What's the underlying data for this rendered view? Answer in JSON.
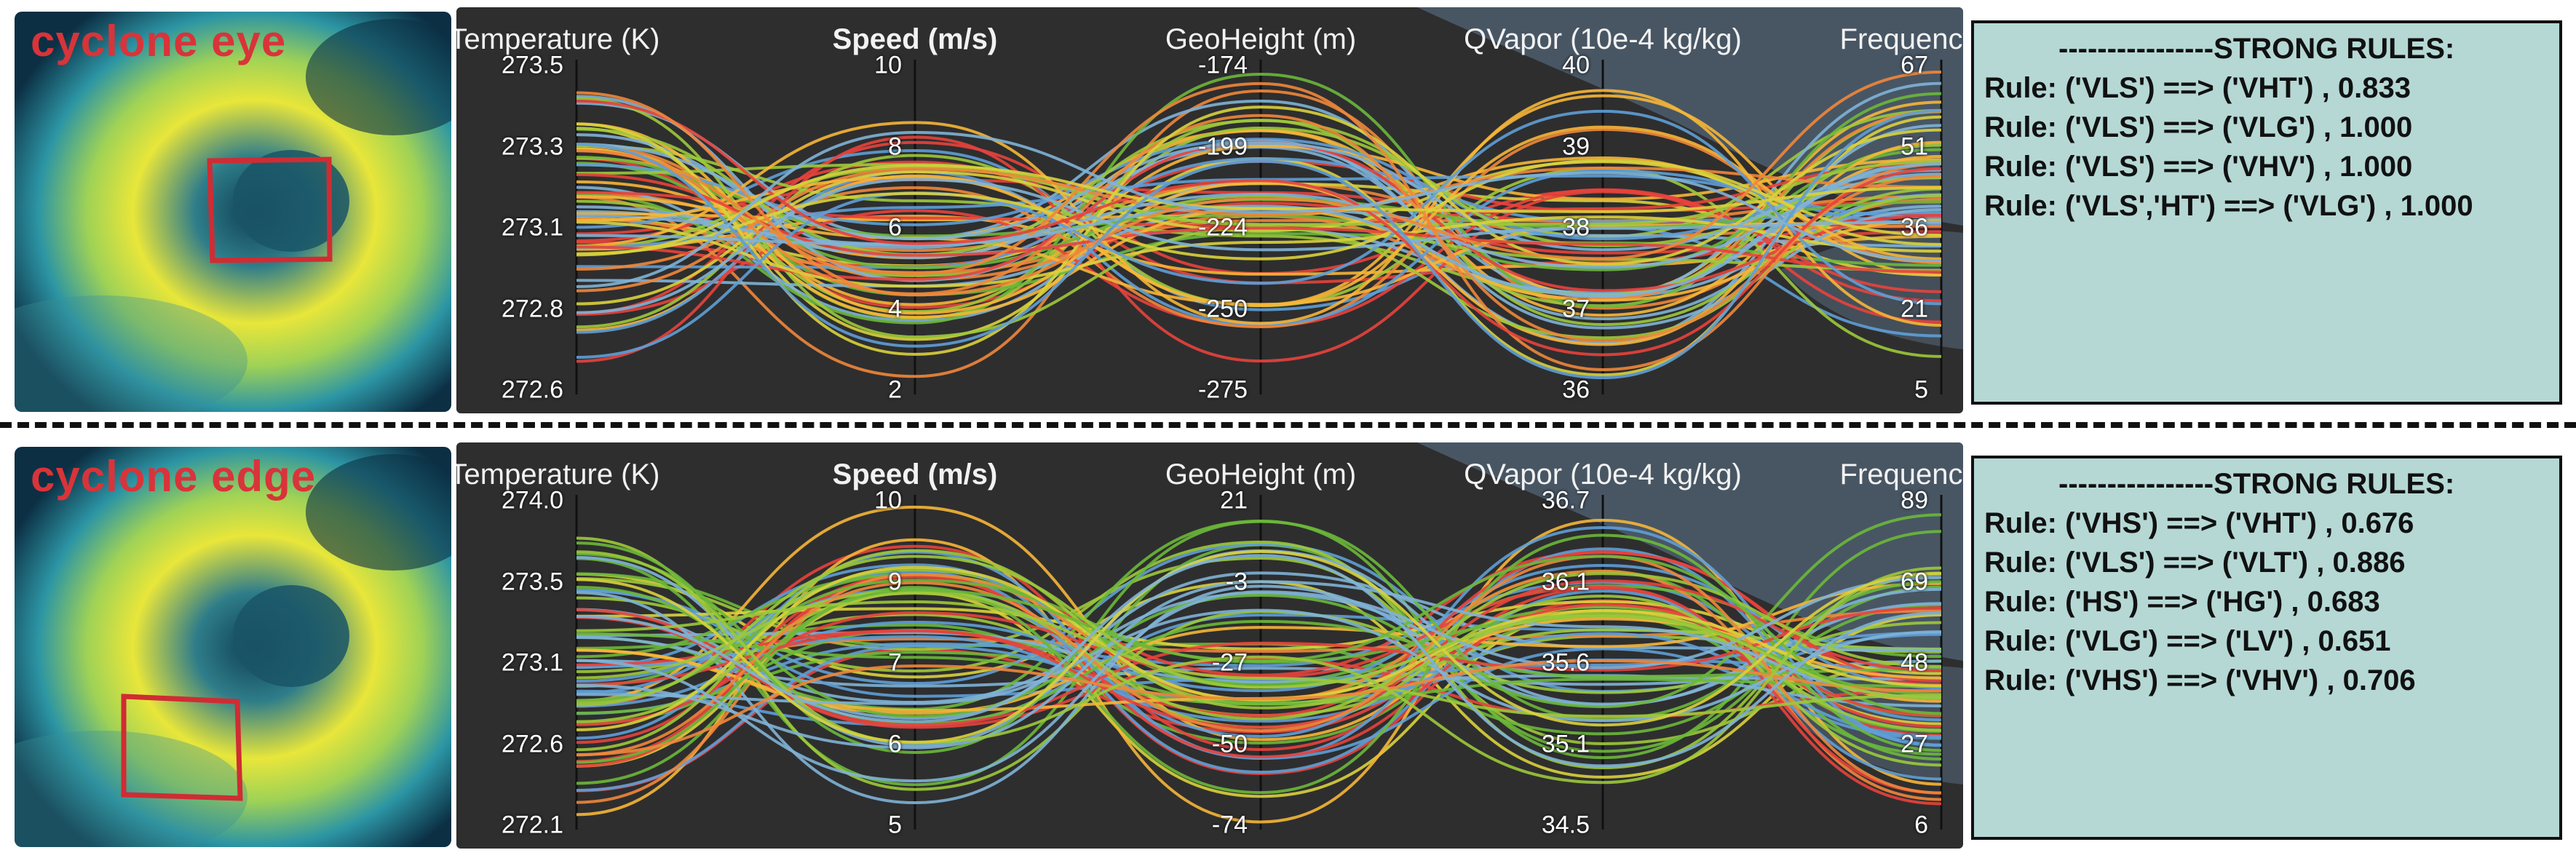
{
  "panels": [
    {
      "id": "eye",
      "region_label": "cyclone eye",
      "axes": [
        {
          "title": "Temperature (K)",
          "bold": false,
          "ticks": [
            "273.5",
            "273.3",
            "273.1",
            "272.8",
            "272.6"
          ]
        },
        {
          "title": "Speed (m/s)",
          "bold": true,
          "ticks": [
            "10",
            "8",
            "6",
            "4",
            "2"
          ]
        },
        {
          "title": "GeoHeight (m)",
          "bold": false,
          "ticks": [
            "-174",
            "-199",
            "-224",
            "-250",
            "-275"
          ]
        },
        {
          "title": "QVapor (10e-4 kg/kg)",
          "bold": false,
          "ticks": [
            "40",
            "39",
            "38",
            "37",
            "36"
          ]
        },
        {
          "title": "Frequency",
          "bold": false,
          "ticks": [
            "67",
            "51",
            "36",
            "21",
            "5"
          ]
        }
      ],
      "rules_header": "----------------STRONG RULES:",
      "rules": [
        "Rule: ('VLS') ==> ('VHT') , 0.833",
        "Rule: ('VLS') ==> ('VLG') , 1.000",
        "Rule: ('VLS') ==> ('VHV') , 1.000",
        "Rule: ('VLS','HT') ==> ('VLG') , 1.000"
      ],
      "seed": 7
    },
    {
      "id": "edge",
      "region_label": "cyclone edge",
      "axes": [
        {
          "title": "Temperature (K)",
          "bold": false,
          "ticks": [
            "274.0",
            "273.5",
            "273.1",
            "272.6",
            "272.1"
          ]
        },
        {
          "title": "Speed (m/s)",
          "bold": true,
          "ticks": [
            "10",
            "9",
            "7",
            "6",
            "5"
          ]
        },
        {
          "title": "GeoHeight (m)",
          "bold": false,
          "ticks": [
            "21",
            "-3",
            "-27",
            "-50",
            "-74"
          ]
        },
        {
          "title": "QVapor (10e-4 kg/kg)",
          "bold": false,
          "ticks": [
            "36.7",
            "36.1",
            "35.6",
            "35.1",
            "34.5"
          ]
        },
        {
          "title": "Frequency",
          "bold": false,
          "ticks": [
            "89",
            "69",
            "48",
            "27",
            "6"
          ]
        }
      ],
      "rules_header": "----------------STRONG RULES:",
      "rules": [
        "Rule: ('VHS') ==> ('VHT') , 0.676",
        "Rule: ('VLS') ==> ('VLT') , 0.886",
        "Rule: ('HS') ==> ('HG') , 0.683",
        "Rule: ('VLG') ==> ('LV') , 0.651",
        "Rule: ('VHS') ==> ('VHV') , 0.706"
      ],
      "seed": 19
    }
  ],
  "colors": {
    "line_palette": [
      "#e8433c",
      "#f0873a",
      "#f6b637",
      "#d9d23c",
      "#9cc93a",
      "#6cb83a",
      "#7fb2d6",
      "#5f9fd6"
    ],
    "heat_low": "#0b3a52",
    "heat_high": "#f3ec2a"
  }
}
